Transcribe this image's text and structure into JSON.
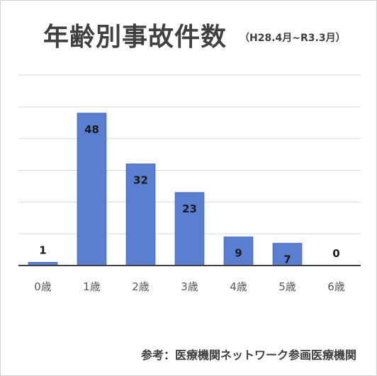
{
  "chart_data": {
    "type": "bar",
    "title": "年齢別事故件数",
    "subtitle": "（H28.4月~R3.3月）",
    "categories": [
      "0歳",
      "1歳",
      "2歳",
      "3歳",
      "4歳",
      "5歳",
      "6歳"
    ],
    "values": [
      1,
      48,
      32,
      23,
      9,
      7,
      0
    ],
    "data_labels": [
      "1",
      "48",
      "32",
      "23",
      "9",
      "7",
      "0"
    ],
    "ylim": [
      0,
      60
    ],
    "grid": true,
    "legend": "none",
    "bar_color": "#5b7fd0",
    "bar_edge_color": "#4a6ab8",
    "gridline_color": "#d9d9d9",
    "axis_color": "#404040"
  },
  "source_note": "参考：医療機関ネットワーク参画医療機関"
}
